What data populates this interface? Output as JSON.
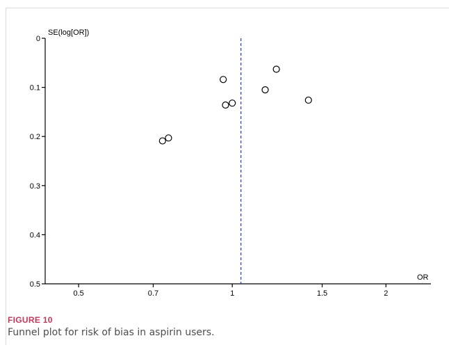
{
  "figure": {
    "label": "FIGURE 10",
    "caption": "Funnel plot for risk of bias in aspirin users."
  },
  "chart_data": {
    "type": "scatter",
    "title": "",
    "xlabel": "OR",
    "ylabel": "SE(log[OR])",
    "xscale": "log",
    "xlim": [
      0.43,
      2.45
    ],
    "ylim": [
      0,
      0.5
    ],
    "y_inverted": true,
    "grid": false,
    "legend": "none",
    "xticks": [
      0.5,
      0.7,
      1,
      1.5,
      2
    ],
    "xtick_labels": [
      "0.5",
      "0.7",
      "1",
      "1.5",
      "2"
    ],
    "yticks": [
      0,
      0.1,
      0.2,
      0.3,
      0.4,
      0.5
    ],
    "ytick_labels": [
      "0",
      "0.1",
      "0.2",
      "0.3",
      "0.4",
      "0.5"
    ],
    "points": [
      {
        "x": 0.73,
        "y": 0.209
      },
      {
        "x": 0.75,
        "y": 0.203
      },
      {
        "x": 0.96,
        "y": 0.084
      },
      {
        "x": 0.97,
        "y": 0.136
      },
      {
        "x": 1.0,
        "y": 0.132
      },
      {
        "x": 1.16,
        "y": 0.105
      },
      {
        "x": 1.22,
        "y": 0.063
      },
      {
        "x": 1.41,
        "y": 0.126
      }
    ],
    "reference_line": {
      "x": 1.04,
      "style": "dashed",
      "color": "#1f2a8c"
    }
  }
}
